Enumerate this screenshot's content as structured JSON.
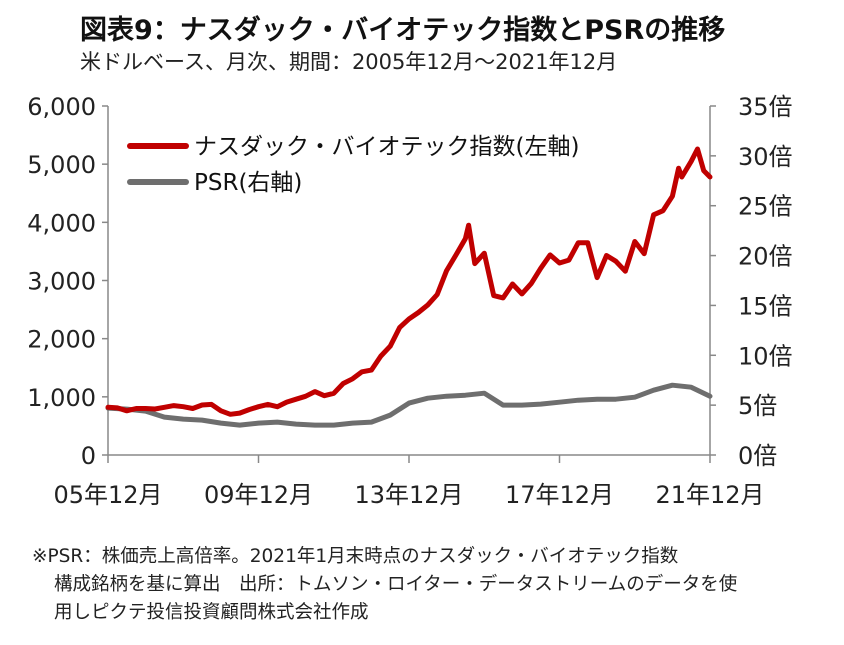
{
  "title": "図表9：ナスダック・バイオテック指数とPSRの推移",
  "subtitle": "米ドルベース、月次、期間：2005年12月～2021年12月",
  "notes": [
    "※PSR：株価売上高倍率。2021年1月末時点のナスダック・バイオテック指数",
    "構成銘柄を基に算出　出所：トムソン・ロイター・データストリームのデータを使",
    "用しピクテ投信投資顧問株式会社作成"
  ],
  "chart_data": {
    "type": "line",
    "xlabel": "",
    "ylabel_left": "",
    "ylabel_right": "",
    "x_start": "2005-12",
    "x_end": "2021-12",
    "x_tick_labels": [
      "05年12月",
      "09年12月",
      "13年12月",
      "17年12月",
      "21年12月"
    ],
    "y_left": {
      "range": [
        0,
        6000
      ],
      "ticks": [
        "0",
        "1,000",
        "2,000",
        "3,000",
        "4,000",
        "5,000",
        "6,000"
      ]
    },
    "y_right": {
      "range": [
        0,
        35
      ],
      "ticks": [
        "0倍",
        "5倍",
        "10倍",
        "15倍",
        "20倍",
        "25倍",
        "30倍",
        "35倍"
      ]
    },
    "legend_position": "top-left",
    "colors": {
      "index": "#c00000",
      "psr": "#6e6e6e",
      "axis": "#888888"
    },
    "series": [
      {
        "name": "ナスダック・バイオテック指数(左軸)",
        "axis": "left",
        "points": [
          [
            "2005-12",
            820
          ],
          [
            "2006-03",
            810
          ],
          [
            "2006-06",
            760
          ],
          [
            "2006-09",
            800
          ],
          [
            "2006-12",
            800
          ],
          [
            "2007-03",
            790
          ],
          [
            "2007-06",
            820
          ],
          [
            "2007-09",
            850
          ],
          [
            "2007-12",
            830
          ],
          [
            "2008-03",
            800
          ],
          [
            "2008-06",
            860
          ],
          [
            "2008-09",
            870
          ],
          [
            "2008-12",
            760
          ],
          [
            "2009-03",
            700
          ],
          [
            "2009-06",
            720
          ],
          [
            "2009-09",
            780
          ],
          [
            "2009-12",
            830
          ],
          [
            "2010-03",
            870
          ],
          [
            "2010-06",
            830
          ],
          [
            "2010-09",
            910
          ],
          [
            "2010-12",
            960
          ],
          [
            "2011-03",
            1010
          ],
          [
            "2011-06",
            1090
          ],
          [
            "2011-09",
            1020
          ],
          [
            "2011-12",
            1060
          ],
          [
            "2012-03",
            1230
          ],
          [
            "2012-06",
            1310
          ],
          [
            "2012-09",
            1430
          ],
          [
            "2012-12",
            1460
          ],
          [
            "2013-03",
            1700
          ],
          [
            "2013-06",
            1870
          ],
          [
            "2013-09",
            2190
          ],
          [
            "2013-12",
            2340
          ],
          [
            "2014-03",
            2450
          ],
          [
            "2014-06",
            2580
          ],
          [
            "2014-09",
            2760
          ],
          [
            "2014-12",
            3170
          ],
          [
            "2015-03",
            3440
          ],
          [
            "2015-06",
            3720
          ],
          [
            "2015-07",
            3950
          ],
          [
            "2015-09",
            3290
          ],
          [
            "2015-12",
            3470
          ],
          [
            "2016-03",
            2740
          ],
          [
            "2016-06",
            2700
          ],
          [
            "2016-09",
            2940
          ],
          [
            "2016-12",
            2770
          ],
          [
            "2017-03",
            2950
          ],
          [
            "2017-06",
            3210
          ],
          [
            "2017-09",
            3440
          ],
          [
            "2017-12",
            3300
          ],
          [
            "2018-03",
            3350
          ],
          [
            "2018-06",
            3650
          ],
          [
            "2018-09",
            3650
          ],
          [
            "2018-12",
            3050
          ],
          [
            "2019-03",
            3430
          ],
          [
            "2019-06",
            3330
          ],
          [
            "2019-09",
            3160
          ],
          [
            "2019-12",
            3670
          ],
          [
            "2020-03",
            3460
          ],
          [
            "2020-06",
            4130
          ],
          [
            "2020-09",
            4200
          ],
          [
            "2020-12",
            4450
          ],
          [
            "2021-02",
            4930
          ],
          [
            "2021-03",
            4780
          ],
          [
            "2021-06",
            5050
          ],
          [
            "2021-08",
            5260
          ],
          [
            "2021-10",
            4890
          ],
          [
            "2021-12",
            4780
          ]
        ]
      },
      {
        "name": "PSR(右軸)",
        "axis": "right",
        "points": [
          [
            "2005-12",
            4.7
          ],
          [
            "2006-06",
            4.6
          ],
          [
            "2006-12",
            4.4
          ],
          [
            "2007-06",
            3.8
          ],
          [
            "2007-12",
            3.6
          ],
          [
            "2008-06",
            3.5
          ],
          [
            "2008-12",
            3.2
          ],
          [
            "2009-06",
            3.0
          ],
          [
            "2009-12",
            3.2
          ],
          [
            "2010-06",
            3.3
          ],
          [
            "2010-12",
            3.1
          ],
          [
            "2011-06",
            3.0
          ],
          [
            "2011-12",
            3.0
          ],
          [
            "2012-06",
            3.2
          ],
          [
            "2012-12",
            3.3
          ],
          [
            "2013-06",
            4.0
          ],
          [
            "2013-12",
            5.2
          ],
          [
            "2014-06",
            5.7
          ],
          [
            "2014-12",
            5.9
          ],
          [
            "2015-06",
            6.0
          ],
          [
            "2015-12",
            6.2
          ],
          [
            "2016-06",
            5.0
          ],
          [
            "2016-12",
            5.0
          ],
          [
            "2017-06",
            5.1
          ],
          [
            "2017-12",
            5.3
          ],
          [
            "2018-06",
            5.5
          ],
          [
            "2018-12",
            5.6
          ],
          [
            "2019-06",
            5.6
          ],
          [
            "2019-12",
            5.8
          ],
          [
            "2020-06",
            6.5
          ],
          [
            "2020-12",
            7.0
          ],
          [
            "2021-06",
            6.8
          ],
          [
            "2021-12",
            5.9
          ]
        ]
      }
    ]
  }
}
